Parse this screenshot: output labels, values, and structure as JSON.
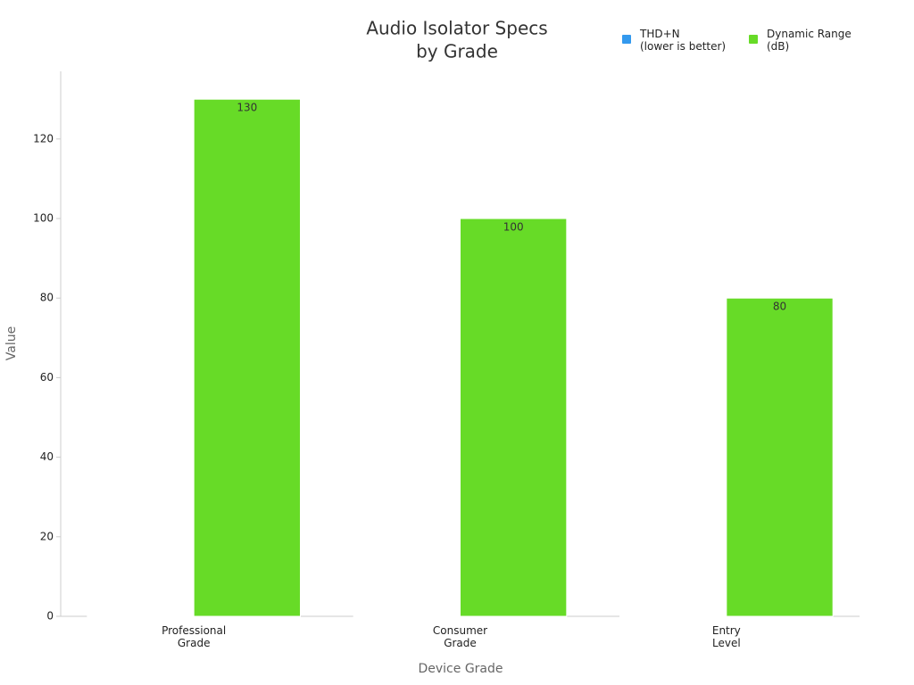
{
  "chart_data": {
    "type": "bar",
    "title": [
      "Audio Isolator Specs",
      "by Grade"
    ],
    "x_label": "Device Grade",
    "y_label": "Value",
    "categories": [
      "Professional\nGrade",
      "Consumer\nGrade",
      "Entry\nLevel"
    ],
    "series": [
      {
        "name": "THD+N\n(lower is better)",
        "color": "#3399ee",
        "values": [
          0.001,
          0.01,
          0.1
        ],
        "data_labels": false
      },
      {
        "name": "Dynamic Range\n(dB)",
        "color": "#67db27",
        "values": [
          130,
          100,
          80
        ],
        "data_labels": true
      }
    ],
    "ylim": [
      0,
      137
    ],
    "yticks": [
      0,
      20,
      40,
      60,
      80,
      100,
      120
    ],
    "grid": false,
    "legend": "top-right"
  }
}
